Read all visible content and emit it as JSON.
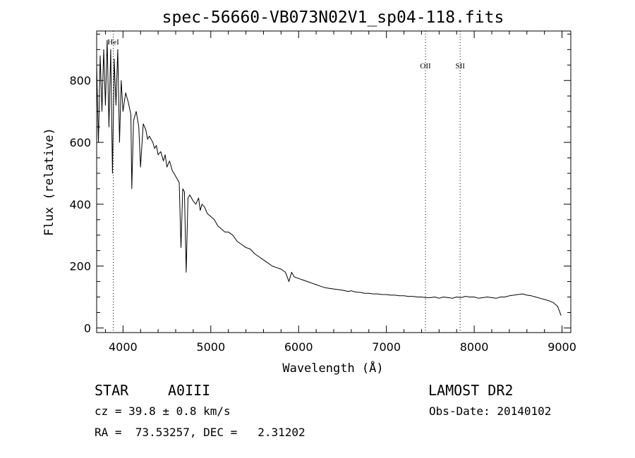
{
  "chart_data": {
    "type": "line",
    "title": "spec-56660-VB073N02V1_sp04-118.fits",
    "xlabel": "Wavelength (Å)",
    "ylabel": "Flux (relative)",
    "xlim": [
      3700,
      9100
    ],
    "ylim": [
      -15,
      960
    ],
    "xticks": [
      4000,
      5000,
      6000,
      7000,
      8000,
      9000
    ],
    "yticks": [
      0,
      200,
      400,
      600,
      800
    ],
    "grid": false,
    "spectral_lines": [
      {
        "name": "HeI",
        "wavelength": 3889
      },
      {
        "name": "OII",
        "wavelength": 7445
      },
      {
        "name": "SII",
        "wavelength": 7840
      }
    ],
    "series": [
      {
        "x": [
          3700,
          3720,
          3740,
          3760,
          3780,
          3800,
          3820,
          3840,
          3860,
          3880,
          3900,
          3920,
          3940,
          3960,
          3980,
          4000,
          4030,
          4060,
          4090,
          4100,
          4120,
          4150,
          4180,
          4200,
          4230,
          4260,
          4280,
          4300,
          4340,
          4360,
          4380,
          4400,
          4430,
          4460,
          4480,
          4500,
          4530,
          4560,
          4580,
          4600,
          4640,
          4660,
          4680,
          4700,
          4720,
          4740,
          4760,
          4800,
          4830,
          4861,
          4880,
          4900,
          4930,
          4960,
          5000,
          5040,
          5080,
          5120,
          5160,
          5200,
          5250,
          5300,
          5350,
          5400,
          5450,
          5500,
          5550,
          5600,
          5650,
          5700,
          5750,
          5800,
          5850,
          5890,
          5920,
          5950,
          6000,
          6050,
          6100,
          6150,
          6200,
          6250,
          6300,
          6350,
          6400,
          6450,
          6500,
          6563,
          6600,
          6650,
          6700,
          6750,
          6800,
          6850,
          6900,
          6950,
          7000,
          7050,
          7100,
          7150,
          7200,
          7250,
          7300,
          7350,
          7400,
          7450,
          7500,
          7550,
          7600,
          7650,
          7700,
          7750,
          7800,
          7850,
          7900,
          7950,
          8000,
          8050,
          8100,
          8150,
          8200,
          8250,
          8300,
          8350,
          8400,
          8450,
          8500,
          8550,
          8600,
          8650,
          8700,
          8750,
          8800,
          8850,
          8900,
          8950,
          8990
        ],
        "y": [
          850,
          600,
          880,
          700,
          900,
          720,
          930,
          650,
          900,
          500,
          870,
          720,
          900,
          600,
          800,
          700,
          760,
          730,
          690,
          450,
          670,
          700,
          650,
          520,
          660,
          640,
          610,
          620,
          600,
          580,
          590,
          560,
          570,
          540,
          560,
          520,
          540,
          510,
          500,
          490,
          470,
          260,
          450,
          440,
          180,
          420,
          430,
          410,
          400,
          420,
          380,
          400,
          390,
          370,
          360,
          350,
          330,
          320,
          310,
          310,
          300,
          280,
          270,
          260,
          255,
          240,
          230,
          220,
          210,
          200,
          195,
          190,
          180,
          150,
          180,
          165,
          160,
          155,
          150,
          145,
          140,
          135,
          130,
          128,
          126,
          124,
          122,
          118,
          120,
          116,
          115,
          112,
          112,
          110,
          110,
          108,
          108,
          106,
          106,
          104,
          104,
          102,
          102,
          100,
          100,
          98,
          98,
          100,
          96,
          100,
          98,
          96,
          100,
          98,
          102,
          100,
          100,
          96,
          98,
          100,
          98,
          96,
          100,
          100,
          104,
          106,
          108,
          110,
          106,
          104,
          100,
          96,
          92,
          88,
          82,
          70,
          40
        ]
      }
    ]
  },
  "info": {
    "object_class": "STAR",
    "subclass": "A0III",
    "survey": "LAMOST DR2",
    "redshift": "cz = 39.8 ± 0.8 km/s",
    "obs_date": "Obs-Date: 20140102",
    "coords": "RA =  73.53257, DEC =   2.31202"
  }
}
